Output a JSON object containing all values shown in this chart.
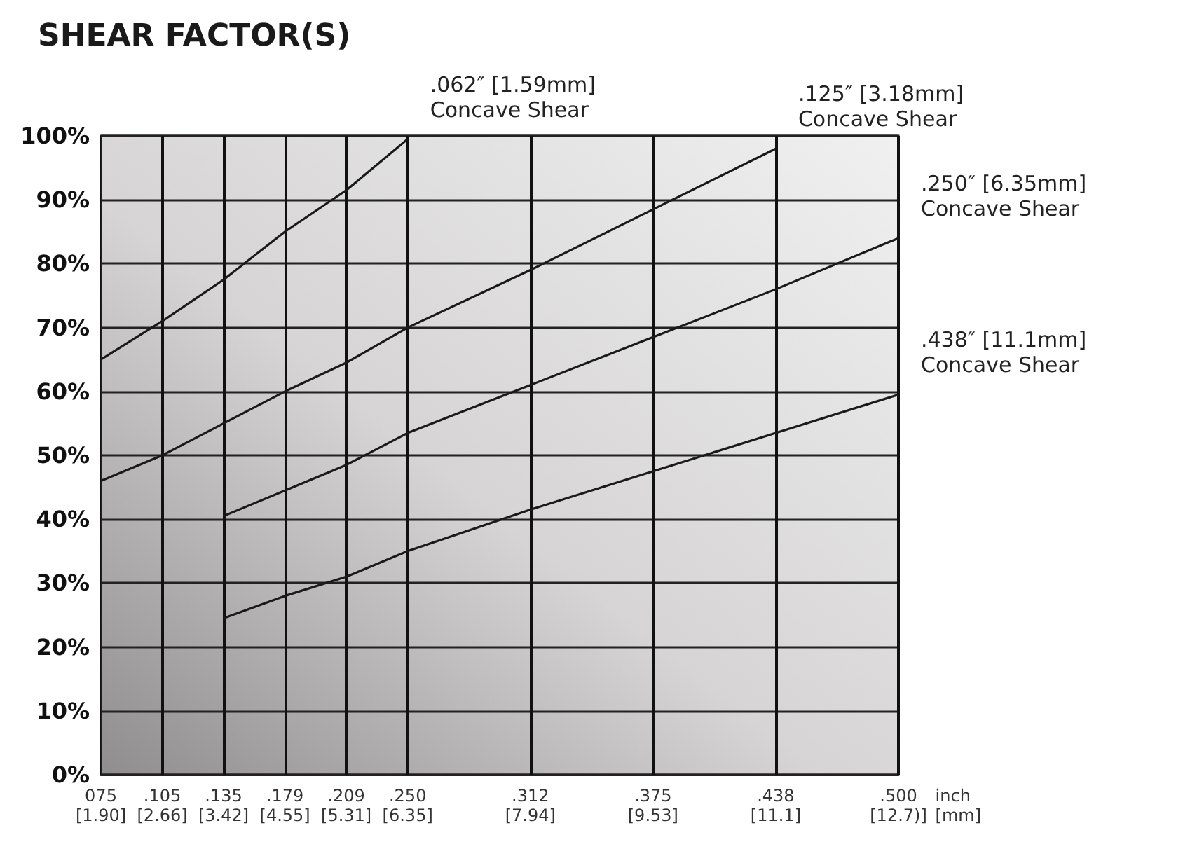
{
  "chart_data": {
    "type": "line",
    "title": "SHEAR FACTOR(S)",
    "xlabel": "inch\n[mm]",
    "categories": [
      "075\n[1.90]",
      ".105\n[2.66]",
      ".135\n[3.42]",
      ".179\n[4.55]",
      ".209\n[5.31]",
      ".250\n[6.35]",
      null,
      ".312\n[7.94]",
      null,
      ".375\n[9.53]",
      null,
      ".438\n[11.1]",
      null,
      ".500\n[12.7)]"
    ],
    "series": [
      {
        "name": ".062″ [1.59mm]\nConcave Shear",
        "color": "#1a1a1a",
        "values": [
          65,
          71,
          77.5,
          85,
          91.5,
          99.5,
          null,
          null,
          null,
          null,
          null,
          null,
          null,
          null
        ]
      },
      {
        "name": ".125″ [3.18mm]\nConcave Shear",
        "color": "#1a1a1a",
        "values": [
          46,
          50,
          55,
          60,
          64.5,
          70,
          null,
          79,
          null,
          88.5,
          null,
          98,
          null,
          null
        ]
      },
      {
        "name": ".250″ [6.35mm]\nConcave Shear",
        "color": "#1a1a1a",
        "values": [
          null,
          null,
          40.5,
          44.5,
          48.5,
          53.5,
          null,
          61,
          null,
          68.5,
          null,
          76,
          null,
          84
        ]
      },
      {
        "name": ".438″ [11.1mm]\nConcave Shear",
        "color": "#1a1a1a",
        "values": [
          null,
          null,
          24.5,
          28,
          31,
          35,
          null,
          41.5,
          null,
          47.5,
          null,
          53.5,
          null,
          59.5
        ]
      }
    ],
    "ylim": [
      0,
      100
    ],
    "yticks": [
      {
        "value": 0,
        "label": "0%"
      },
      {
        "value": 10,
        "label": "10%"
      },
      {
        "value": 20,
        "label": "20%"
      },
      {
        "value": 30,
        "label": "30%"
      },
      {
        "value": 40,
        "label": "40%"
      },
      {
        "value": 50,
        "label": "50%"
      },
      {
        "value": 60,
        "label": "60%"
      },
      {
        "value": 70,
        "label": "70%"
      },
      {
        "value": 80,
        "label": "80%"
      },
      {
        "value": 90,
        "label": "90%"
      },
      {
        "value": 100,
        "label": "100%"
      }
    ],
    "grid": true,
    "marker": "none",
    "line_style": "solid"
  }
}
